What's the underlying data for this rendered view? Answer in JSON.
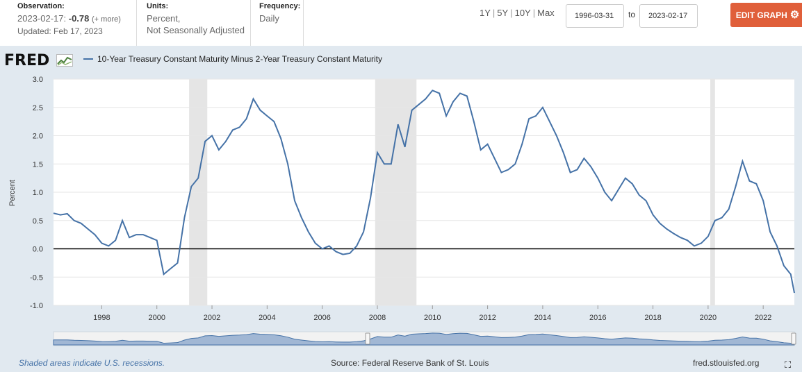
{
  "header": {
    "observation_label": "Observation:",
    "observation_date": "2023-02-17:",
    "observation_value": "-0.78",
    "observation_more": "(+ more)",
    "updated": "Updated: Feb 17, 2023",
    "units_label": "Units:",
    "units_line1": "Percent,",
    "units_line2": "Not Seasonally Adjusted",
    "frequency_label": "Frequency:",
    "frequency_value": "Daily"
  },
  "ranges": [
    "1Y",
    "5Y",
    "10Y",
    "Max"
  ],
  "date_start": "1996-03-31",
  "date_to": "to",
  "date_end": "2023-02-17",
  "edit_graph_label": "EDIT GRAPH",
  "logo_text": "FRED",
  "footer": {
    "recession_note": "Shaded areas indicate U.S. recessions.",
    "source": "Source: Federal Reserve Bank of St. Louis",
    "site": "fred.stlouisfed.org"
  },
  "icons": {
    "gear": "gear-icon",
    "fullscreen": "fullscreen-icon",
    "logo_chart": "line-chart-icon"
  },
  "colors": {
    "series": "#4572a7",
    "recession": "#e5e5e5",
    "panel": "#e1e9f0",
    "button": "#e05f3a"
  },
  "chart_data": {
    "type": "line",
    "title": "",
    "xlabel": "",
    "ylabel": "Percent",
    "ylim": [
      -1.0,
      3.0
    ],
    "xlim": [
      1996.25,
      2023.13
    ],
    "grid": true,
    "legend_placement": "top-left",
    "yticks": [
      "3.0",
      "2.5",
      "2.0",
      "1.5",
      "1.0",
      "0.5",
      "0.0",
      "-0.5",
      "-1.0"
    ],
    "xticks": [
      "1998",
      "2000",
      "2002",
      "2004",
      "2006",
      "2008",
      "2010",
      "2012",
      "2014",
      "2016",
      "2018",
      "2020",
      "2022"
    ],
    "recessions": [
      [
        2001.17,
        2001.83
      ],
      [
        2007.92,
        2009.42
      ],
      [
        2020.08,
        2020.25
      ]
    ],
    "zero_line": 0,
    "series": [
      {
        "name": "10-Year Treasury Constant Maturity Minus 2-Year Treasury Constant Maturity",
        "x": [
          1996.25,
          1996.5,
          1996.75,
          1997.0,
          1997.25,
          1997.5,
          1997.75,
          1998.0,
          1998.25,
          1998.5,
          1998.75,
          1999.0,
          1999.25,
          1999.5,
          1999.75,
          2000.0,
          2000.25,
          2000.5,
          2000.75,
          2001.0,
          2001.25,
          2001.5,
          2001.75,
          2002.0,
          2002.25,
          2002.5,
          2002.75,
          2003.0,
          2003.25,
          2003.5,
          2003.75,
          2004.0,
          2004.25,
          2004.5,
          2004.75,
          2005.0,
          2005.25,
          2005.5,
          2005.75,
          2006.0,
          2006.25,
          2006.5,
          2006.75,
          2007.0,
          2007.25,
          2007.5,
          2007.75,
          2008.0,
          2008.25,
          2008.5,
          2008.75,
          2009.0,
          2009.25,
          2009.5,
          2009.75,
          2010.0,
          2010.25,
          2010.5,
          2010.75,
          2011.0,
          2011.25,
          2011.5,
          2011.75,
          2012.0,
          2012.25,
          2012.5,
          2012.75,
          2013.0,
          2013.25,
          2013.5,
          2013.75,
          2014.0,
          2014.25,
          2014.5,
          2014.75,
          2015.0,
          2015.25,
          2015.5,
          2015.75,
          2016.0,
          2016.25,
          2016.5,
          2016.75,
          2017.0,
          2017.25,
          2017.5,
          2017.75,
          2018.0,
          2018.25,
          2018.5,
          2018.75,
          2019.0,
          2019.25,
          2019.5,
          2019.75,
          2020.0,
          2020.25,
          2020.5,
          2020.75,
          2021.0,
          2021.25,
          2021.5,
          2021.75,
          2022.0,
          2022.25,
          2022.5,
          2022.75,
          2023.0,
          2023.13
        ],
        "values": [
          0.63,
          0.6,
          0.62,
          0.5,
          0.45,
          0.35,
          0.25,
          0.1,
          0.05,
          0.15,
          0.5,
          0.2,
          0.25,
          0.25,
          0.2,
          0.15,
          -0.45,
          -0.35,
          -0.25,
          0.55,
          1.1,
          1.25,
          1.9,
          2.0,
          1.75,
          1.9,
          2.1,
          2.15,
          2.3,
          2.65,
          2.45,
          2.35,
          2.25,
          1.95,
          1.5,
          0.85,
          0.55,
          0.3,
          0.1,
          0.0,
          0.05,
          -0.05,
          -0.1,
          -0.08,
          0.05,
          0.3,
          0.9,
          1.7,
          1.5,
          1.5,
          2.2,
          1.8,
          2.45,
          2.55,
          2.65,
          2.8,
          2.75,
          2.35,
          2.6,
          2.75,
          2.7,
          2.25,
          1.75,
          1.85,
          1.6,
          1.35,
          1.4,
          1.5,
          1.85,
          2.3,
          2.35,
          2.5,
          2.25,
          2.0,
          1.7,
          1.35,
          1.4,
          1.6,
          1.45,
          1.25,
          1.0,
          0.85,
          1.05,
          1.25,
          1.15,
          0.95,
          0.85,
          0.6,
          0.45,
          0.35,
          0.27,
          0.2,
          0.15,
          0.05,
          0.1,
          0.22,
          0.5,
          0.55,
          0.7,
          1.1,
          1.55,
          1.2,
          1.15,
          0.85,
          0.3,
          0.05,
          -0.3,
          -0.45,
          -0.78
        ]
      }
    ]
  }
}
